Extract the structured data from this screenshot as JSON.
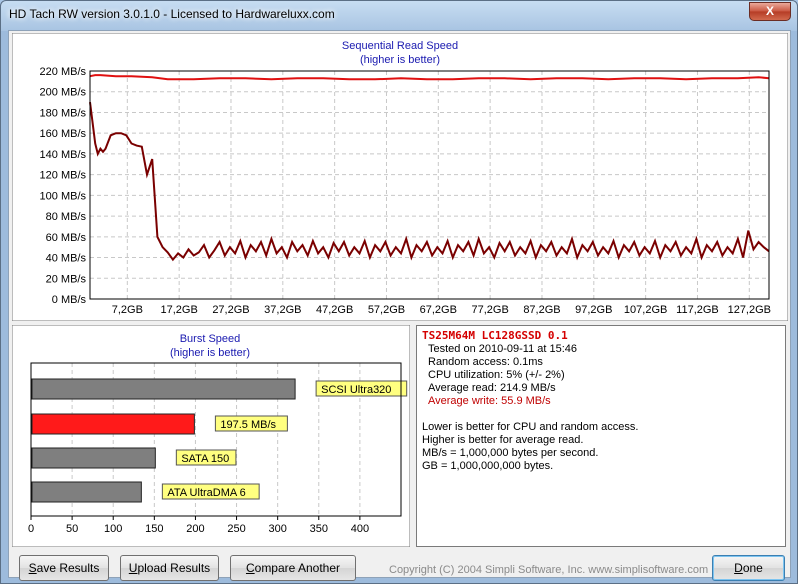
{
  "window": {
    "title": "HD Tach RW version 3.0.1.0 - Licensed to Hardwareluxx.com",
    "close_label": "X"
  },
  "read_chart": {
    "title": "Sequential Read Speed",
    "subtitle": "(higher is better)"
  },
  "burst_chart": {
    "title": "Burst Speed",
    "subtitle": "(higher is better)"
  },
  "info": {
    "drive_name": "TS25M64M LC128GSSD 0.1",
    "tested_on": "Tested on 2010-09-11 at 15:46",
    "random_access": "Random access: 0.1ms",
    "cpu_utilization": "CPU utilization: 5% (+/- 2%)",
    "average_read": "Average read: 214.9 MB/s",
    "average_write": "Average write: 55.9 MB/s",
    "note1": "Lower is better for CPU and random access.",
    "note2": "Higher is better for average read.",
    "note3": "MB/s = 1,000,000 bytes per second.",
    "note4": "GB = 1,000,000,000 bytes.",
    "write_color": "#c00000"
  },
  "buttons": {
    "save_u": "S",
    "save_rest": "ave Results",
    "upload_u": "U",
    "upload_rest": "pload Results",
    "compare_u": "C",
    "compare_rest": "ompare Another Drive",
    "done_u": "D",
    "done_rest": "one"
  },
  "copyright": "Copyright (C) 2004 Simpli Software, Inc. www.simplisoftware.com",
  "chart_data": [
    {
      "type": "line",
      "title": "Sequential Read Speed",
      "subtitle": "(higher is better)",
      "ylabel": "",
      "xlabel": "",
      "ylim": [
        0,
        220
      ],
      "xlim": [
        0,
        131
      ],
      "yticks": [
        "0 MB/s",
        "20 MB/s",
        "40 MB/s",
        "60 MB/s",
        "80 MB/s",
        "100 MB/s",
        "120 MB/s",
        "140 MB/s",
        "160 MB/s",
        "180 MB/s",
        "200 MB/s",
        "220 MB/s"
      ],
      "xticks": [
        "7,2GB",
        "17,2GB",
        "27,2GB",
        "37,2GB",
        "47,2GB",
        "57,2GB",
        "67,2GB",
        "77,2GB",
        "87,2GB",
        "97,2GB",
        "107,2GB",
        "117,2GB",
        "127,2GB"
      ],
      "xtick_values": [
        7.2,
        17.2,
        27.2,
        37.2,
        47.2,
        57.2,
        67.2,
        77.2,
        87.2,
        97.2,
        107.2,
        117.2,
        127.2
      ],
      "grid": true,
      "series": [
        {
          "color": "#e01010",
          "x": [
            0,
            1,
            2,
            5,
            8,
            12,
            15,
            20,
            25,
            30,
            35,
            40,
            45,
            50,
            55,
            60,
            65,
            70,
            75,
            80,
            85,
            90,
            95,
            100,
            105,
            110,
            115,
            120,
            125,
            129,
            131
          ],
          "y": [
            215,
            216,
            216,
            215,
            215,
            214,
            212,
            212,
            213,
            213,
            212,
            213,
            213,
            212,
            212,
            213,
            212,
            212,
            213,
            213,
            212,
            213,
            213,
            212,
            213,
            213,
            212,
            213,
            213,
            214,
            213
          ]
        },
        {
          "color": "#7a0000",
          "x": [
            0,
            0.5,
            1,
            1.5,
            2,
            2.5,
            3,
            4,
            5,
            6,
            7,
            8,
            9,
            10,
            11,
            12,
            13,
            14,
            15,
            16,
            17,
            18,
            19,
            20,
            21,
            22,
            23,
            24,
            25,
            26,
            27,
            28,
            29,
            30,
            31,
            32,
            33,
            34,
            35,
            36,
            37,
            38,
            39,
            40,
            41,
            42,
            43,
            44,
            45,
            46,
            47,
            48,
            49,
            50,
            51,
            52,
            53,
            54,
            55,
            56,
            57,
            58,
            59,
            60,
            61,
            62,
            63,
            64,
            65,
            66,
            67,
            68,
            69,
            70,
            71,
            72,
            73,
            74,
            75,
            76,
            77,
            78,
            79,
            80,
            81,
            82,
            83,
            84,
            85,
            86,
            87,
            88,
            89,
            90,
            91,
            92,
            93,
            94,
            95,
            96,
            97,
            98,
            99,
            100,
            101,
            102,
            103,
            104,
            105,
            106,
            107,
            108,
            109,
            110,
            111,
            112,
            113,
            114,
            115,
            116,
            117,
            118,
            119,
            120,
            121,
            122,
            123,
            124,
            125,
            126,
            127,
            128,
            129,
            130,
            131
          ],
          "y": [
            190,
            170,
            150,
            140,
            145,
            142,
            145,
            158,
            160,
            160,
            158,
            150,
            148,
            147,
            120,
            135,
            60,
            50,
            45,
            38,
            44,
            40,
            48,
            42,
            45,
            52,
            40,
            47,
            55,
            42,
            50,
            44,
            56,
            40,
            52,
            46,
            55,
            42,
            58,
            44,
            50,
            40,
            55,
            46,
            52,
            42,
            56,
            44,
            50,
            40,
            54,
            46,
            55,
            42,
            50,
            44,
            56,
            40,
            52,
            46,
            55,
            42,
            50,
            44,
            58,
            40,
            52,
            46,
            55,
            42,
            50,
            44,
            56,
            40,
            52,
            46,
            55,
            42,
            58,
            44,
            50,
            40,
            54,
            46,
            55,
            42,
            50,
            44,
            56,
            40,
            52,
            46,
            55,
            42,
            50,
            44,
            58,
            40,
            52,
            46,
            55,
            42,
            50,
            44,
            56,
            40,
            52,
            46,
            55,
            42,
            50,
            44,
            56,
            40,
            52,
            46,
            55,
            42,
            50,
            44,
            58,
            40,
            52,
            46,
            55,
            42,
            50,
            44,
            58,
            40,
            66,
            48,
            55,
            50,
            46
          ]
        }
      ]
    },
    {
      "type": "bar",
      "orientation": "horizontal",
      "title": "Burst Speed",
      "subtitle": "(higher is better)",
      "xlim": [
        0,
        450
      ],
      "xticks": [
        "0",
        "50",
        "100",
        "150",
        "200",
        "250",
        "300",
        "350",
        "400"
      ],
      "categories": [
        "SCSI Ultra320",
        "197.5 MB/s",
        "SATA 150",
        "ATA UltraDMA 6"
      ],
      "values": [
        320,
        197.5,
        150,
        133
      ],
      "colors": [
        "#7f7f7f",
        "#ff1a1a",
        "#7f7f7f",
        "#7f7f7f"
      ],
      "label_color": "#ffff80"
    }
  ]
}
